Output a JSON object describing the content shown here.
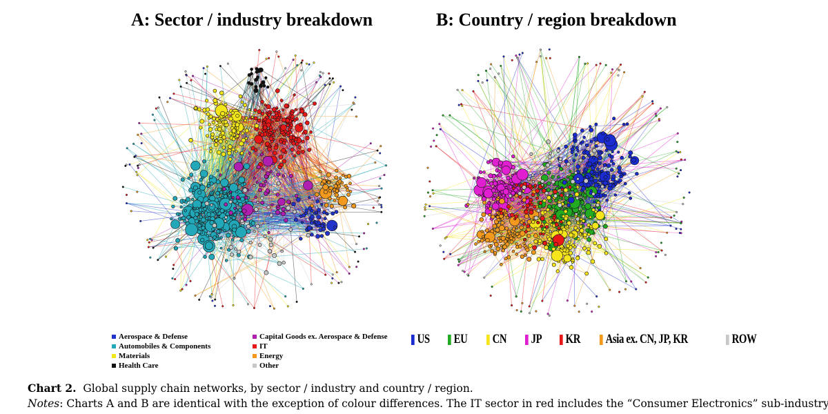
{
  "panel_a": {
    "title": "A: Sector / industry breakdown",
    "legend": [
      {
        "label": "Aerospace & Defense",
        "color": "#2233cc"
      },
      {
        "label": "Automobiles & Components",
        "color": "#22a8b8"
      },
      {
        "label": "Materials",
        "color": "#f2e51a"
      },
      {
        "label": "Health Care",
        "color": "#111111"
      },
      {
        "label": "Capital Goods ex. Aerospace & Defense",
        "color": "#b020b0"
      },
      {
        "label": "IT",
        "color": "#e81818"
      },
      {
        "label": "Energy",
        "color": "#f39a1e"
      },
      {
        "label": "Other",
        "color": "#c8c8c8"
      }
    ]
  },
  "panel_b": {
    "title": "B: Country / region breakdown",
    "legend": [
      {
        "label": "US",
        "color": "#1a2bd0"
      },
      {
        "label": "EU",
        "color": "#22aa22"
      },
      {
        "label": "CN",
        "color": "#f5e51a"
      },
      {
        "label": "JP",
        "color": "#e020d0"
      },
      {
        "label": "KR",
        "color": "#e81818"
      },
      {
        "label": "Asia ex. CN, JP, KR",
        "color": "#f39a1e"
      },
      {
        "label": "ROW",
        "color": "#c8c8c8"
      }
    ]
  },
  "caption": {
    "label": "Chart 2.",
    "text": "Global supply chain networks, by sector / industry and country / region.",
    "notes_label": "Notes",
    "notes_text": ": Charts A and B are identical with the exception of colour differences. The IT sector in red includes the “Consumer Electronics” sub-industry"
  }
}
